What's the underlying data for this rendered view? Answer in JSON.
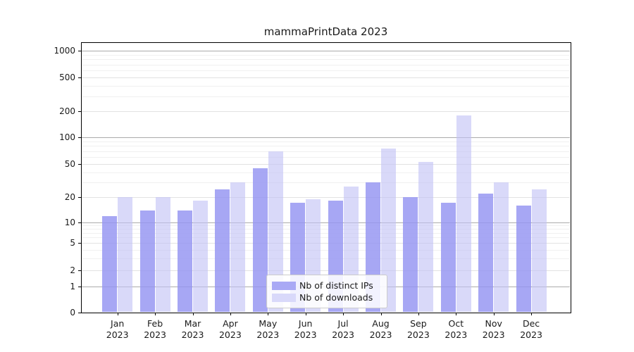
{
  "title": "mammaPrintData 2023",
  "year": "2023",
  "chart_data": {
    "type": "bar",
    "title": "mammaPrintData 2023",
    "categories": [
      "Jan 2023",
      "Feb 2023",
      "Mar 2023",
      "Apr 2023",
      "May 2023",
      "Jun 2023",
      "Jul 2023",
      "Aug 2023",
      "Sep 2023",
      "Oct 2023",
      "Nov 2023",
      "Dec 2023"
    ],
    "month_labels": [
      "Jan",
      "Feb",
      "Mar",
      "Apr",
      "May",
      "Jun",
      "Jul",
      "Aug",
      "Sep",
      "Oct",
      "Nov",
      "Dec"
    ],
    "series": [
      {
        "name": "Nb of distinct IPs",
        "color": "#a9a9f5",
        "fill": "rgba(148,148,242,0.82)",
        "values": [
          12,
          14,
          14,
          25,
          45,
          17,
          18,
          30,
          20,
          17,
          22,
          16
        ]
      },
      {
        "name": "Nb of downloads",
        "color": "#d9d9fa",
        "fill": "rgba(193,193,246,0.62)",
        "values": [
          20,
          20,
          18,
          30,
          70,
          19,
          27,
          75,
          53,
          178,
          30,
          25
        ]
      }
    ],
    "yscale": "symlog",
    "ylim": [
      0,
      1200
    ],
    "yticks": [
      "0",
      "1",
      "2",
      "5",
      "10",
      "20",
      "50",
      "100",
      "200",
      "500",
      "1000"
    ],
    "grid": true,
    "legend_position": "lower center",
    "colors": {
      "major_grid": "#ababab",
      "mid_grid": "#e2e2e2",
      "minor_grid": "#f0f0f0",
      "axis": "#000000"
    }
  }
}
